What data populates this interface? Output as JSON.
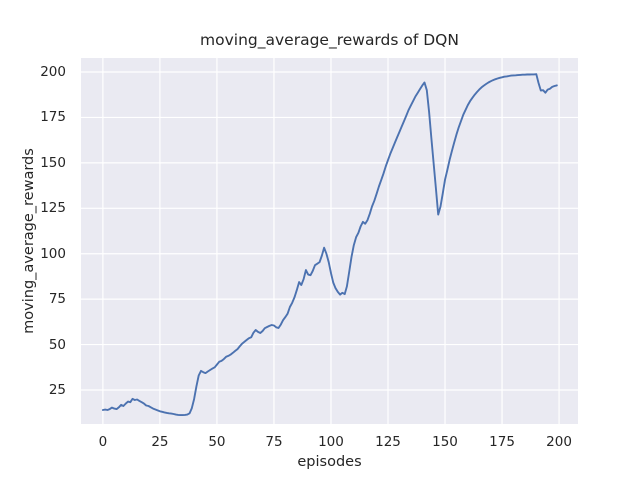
{
  "chart_data": {
    "type": "line",
    "title": "moving_average_rewards of DQN",
    "xlabel": "episodes",
    "ylabel": "moving_average_rewards",
    "x_ticks": [
      0,
      25,
      50,
      75,
      100,
      125,
      150,
      175,
      200
    ],
    "y_ticks": [
      25,
      50,
      75,
      100,
      125,
      150,
      175,
      200
    ],
    "xlim": [
      -9.6,
      208.3
    ],
    "ylim": [
      6.3,
      207.7
    ],
    "grid": true,
    "grid_color": "#ffffff",
    "legend_position": "none",
    "plot_background": "#eaeaf2",
    "figure_background": "#ffffff",
    "line_color": "#4c72b0",
    "series": [
      {
        "name": "moving_average_rewards",
        "x_min": 0,
        "x_step": 1,
        "y_values": [
          14.0,
          14.2,
          14.0,
          14.5,
          15.3,
          14.8,
          14.5,
          15.5,
          16.8,
          16.2,
          17.5,
          18.6,
          18.3,
          20.1,
          19.5,
          19.8,
          19.0,
          18.3,
          17.5,
          16.5,
          16.2,
          15.5,
          14.8,
          14.3,
          13.8,
          13.3,
          13.0,
          12.7,
          12.4,
          12.2,
          12.0,
          11.8,
          11.5,
          11.3,
          11.2,
          11.2,
          11.3,
          11.5,
          12.2,
          15.0,
          20.0,
          27.0,
          33.0,
          35.5,
          34.8,
          34.3,
          35.2,
          36.0,
          36.8,
          37.5,
          39.0,
          40.5,
          41.0,
          42.0,
          43.3,
          43.8,
          44.5,
          45.5,
          46.5,
          47.5,
          49.0,
          50.5,
          51.5,
          52.5,
          53.5,
          54.0,
          56.5,
          58.0,
          57.0,
          56.4,
          57.5,
          59.0,
          59.7,
          60.3,
          60.8,
          60.5,
          59.5,
          59.1,
          61.0,
          63.5,
          65.2,
          67.0,
          70.7,
          73.0,
          76.0,
          80.0,
          84.4,
          82.8,
          86.0,
          91.0,
          88.5,
          88.2,
          90.5,
          93.7,
          94.5,
          95.4,
          99.0,
          103.3,
          100.0,
          95.4,
          89.3,
          84.0,
          81.1,
          79.0,
          77.5,
          78.5,
          77.8,
          82.0,
          90.0,
          98.2,
          104.7,
          109.1,
          111.5,
          115.0,
          117.5,
          116.5,
          118.5,
          122.0,
          126.0,
          129.1,
          133.0,
          137.0,
          140.5,
          144.0,
          148.0,
          151.5,
          155.0,
          158.0,
          161.0,
          164.0,
          167.0,
          170.0,
          173.0,
          176.0,
          179.0,
          181.5,
          184.0,
          186.5,
          188.5,
          190.5,
          192.5,
          194.2,
          190.0,
          178.0,
          164.0,
          150.0,
          136.0,
          121.5,
          126.0,
          133.0,
          140.7,
          146.0,
          151.6,
          156.5,
          161.0,
          165.5,
          169.5,
          173.0,
          176.5,
          179.2,
          181.8,
          184.0,
          185.8,
          187.5,
          189.0,
          190.3,
          191.5,
          192.5,
          193.4,
          194.2,
          194.9,
          195.5,
          196.0,
          196.4,
          196.8,
          197.1,
          197.4,
          197.6,
          197.8,
          198.0,
          198.1,
          198.2,
          198.3,
          198.4,
          198.5,
          198.5,
          198.6,
          198.6,
          198.7,
          198.7,
          198.8,
          194.0,
          189.8,
          190.0,
          188.6,
          190.3,
          190.8,
          191.8,
          192.3,
          192.6
        ]
      }
    ]
  }
}
